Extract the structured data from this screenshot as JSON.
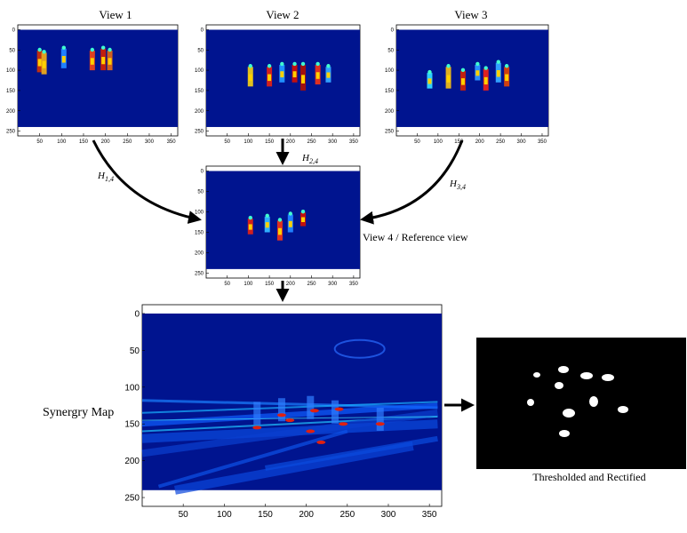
{
  "views": [
    {
      "label": "View 1"
    },
    {
      "label": "View 2"
    },
    {
      "label": "View 3"
    }
  ],
  "homographies": [
    {
      "symbol": "H",
      "sub": "1,4"
    },
    {
      "symbol": "H",
      "sub": "2,4"
    },
    {
      "symbol": "H",
      "sub": "3,4"
    }
  ],
  "reference_label": "View 4 / Reference view",
  "synergy_label": "Synergry Map",
  "thresholded_label": "Thresholded and Rectified",
  "axes": {
    "xticks": [
      50,
      100,
      150,
      200,
      250,
      300,
      350
    ],
    "yticks": [
      0,
      50,
      100,
      150,
      200,
      250
    ]
  }
}
